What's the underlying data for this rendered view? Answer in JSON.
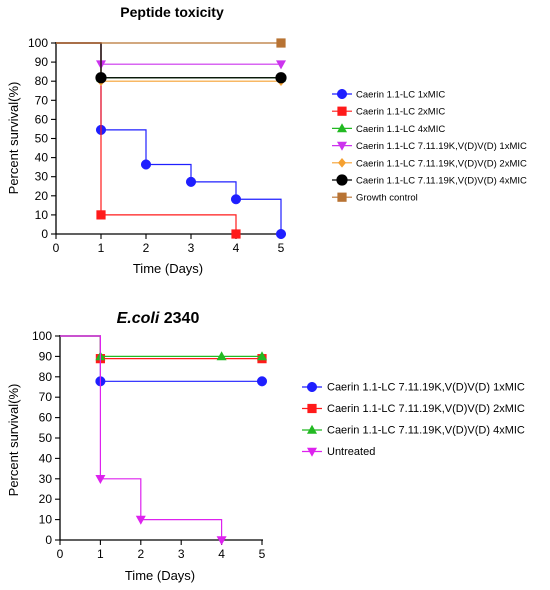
{
  "chart_data": [
    {
      "type": "line",
      "subtype": "survival-step",
      "title": "Peptide toxicity",
      "title_parts": [
        {
          "text": "Peptide toxicity",
          "italic": false
        }
      ],
      "xlabel": "Time (Days)",
      "ylabel": "Percent survival(%)",
      "xlim": [
        0,
        5
      ],
      "ylim": [
        0,
        100
      ],
      "xticks": [
        0,
        1,
        2,
        3,
        4,
        5
      ],
      "yticks": [
        0,
        10,
        20,
        30,
        40,
        50,
        60,
        70,
        80,
        90,
        100
      ],
      "grid": false,
      "legend_position": "right",
      "series": [
        {
          "name": "Caerin 1.1-LC 1xMIC",
          "color": "#1f1fff",
          "marker": "circle",
          "x": [
            0,
            1,
            2,
            3,
            4,
            5
          ],
          "y": [
            100,
            54.5,
            36.4,
            27.3,
            18.2,
            0
          ],
          "markers_at": [
            1,
            2,
            3,
            4,
            5
          ]
        },
        {
          "name": "Caerin 1.1-LC 2xMIC",
          "color": "#ff1a1a",
          "marker": "square",
          "x": [
            0,
            1,
            4
          ],
          "y": [
            100,
            10,
            0
          ],
          "markers_at": [
            1,
            4
          ]
        },
        {
          "name": "Caerin 1.1-LC 4xMIC",
          "color": "#22b922",
          "marker": "triangle-up",
          "x": [
            0,
            1,
            5
          ],
          "y": [
            100,
            81.8,
            81.8
          ],
          "markers_at": [
            1,
            5
          ]
        },
        {
          "name": "Caerin 1.1-LC  7.11.19K,V(D)V(D) 1xMIC",
          "color": "#cc33ee",
          "marker": "triangle-down",
          "x": [
            0,
            1,
            5
          ],
          "y": [
            100,
            88.9,
            88.9
          ],
          "markers_at": [
            1,
            5
          ]
        },
        {
          "name": "Caerin 1.1-LC  7.11.19K,V(D)V(D) 2xMIC",
          "color": "#f5a030",
          "marker": "diamond",
          "x": [
            0,
            1,
            5
          ],
          "y": [
            100,
            80,
            80
          ],
          "markers_at": [
            1,
            5
          ]
        },
        {
          "name": "Caerin 1.1-LC  7.11.19K,V(D)V(D) 4xMIC",
          "color": "#000000",
          "marker": "circle-large",
          "x": [
            0,
            1,
            5
          ],
          "y": [
            100,
            81.8,
            81.8
          ],
          "markers_at": [
            1,
            5
          ]
        },
        {
          "name": "Growth control",
          "color": "#b87333",
          "marker": "square",
          "x": [
            0,
            5
          ],
          "y": [
            100,
            100
          ],
          "markers_at": [
            5
          ]
        }
      ]
    },
    {
      "type": "line",
      "subtype": "survival-step",
      "title": "E.coli 2340",
      "title_parts": [
        {
          "text": "E.coli",
          "italic": true
        },
        {
          "text": " 2340",
          "italic": false
        }
      ],
      "xlabel": "Time (Days)",
      "ylabel": "Percent survival(%)",
      "xlim": [
        0,
        5
      ],
      "ylim": [
        0,
        100
      ],
      "xticks": [
        0,
        1,
        2,
        3,
        4,
        5
      ],
      "yticks": [
        0,
        10,
        20,
        30,
        40,
        50,
        60,
        70,
        80,
        90,
        100
      ],
      "grid": false,
      "legend_position": "right",
      "series": [
        {
          "name": "Caerin 1.1-LC  7.11.19K,V(D)V(D) 1xMIC",
          "color": "#1f1fff",
          "marker": "circle",
          "x": [
            0,
            1,
            5
          ],
          "y": [
            100,
            77.8,
            77.8
          ],
          "markers_at": [
            1,
            5
          ]
        },
        {
          "name": "Caerin 1.1-LC  7.11.19K,V(D)V(D) 2xMIC",
          "color": "#ff1a1a",
          "marker": "square",
          "x": [
            0,
            1,
            5
          ],
          "y": [
            100,
            88.9,
            88.9
          ],
          "markers_at": [
            1,
            5
          ]
        },
        {
          "name": "Caerin 1.1-LC  7.11.19K,V(D)V(D) 4xMIC",
          "color": "#22b922",
          "marker": "triangle-up",
          "x": [
            0,
            1,
            4,
            5
          ],
          "y": [
            100,
            90,
            90,
            90
          ],
          "markers_at": [
            1,
            4,
            5
          ]
        },
        {
          "name": "Untreated",
          "color": "#dd22ee",
          "marker": "triangle-down",
          "x": [
            0,
            1,
            2,
            4
          ],
          "y": [
            100,
            30,
            10,
            0
          ],
          "markers_at": [
            1,
            2,
            4
          ]
        }
      ]
    }
  ]
}
